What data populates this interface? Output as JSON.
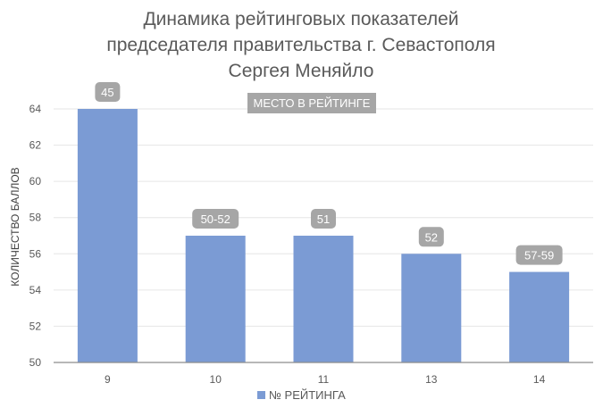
{
  "chart_data": {
    "type": "bar",
    "title_lines": [
      "Динамика рейтинговых показателей",
      "председателя правительства г. Севастополя",
      "Сергея Меняйло"
    ],
    "ylabel": "КОЛИЧЕСТВО БАЛЛОВ",
    "xlabel": "",
    "categories": [
      "9",
      "10",
      "11",
      "13",
      "14"
    ],
    "series": [
      {
        "name": "№ РЕЙТИНГА",
        "values": [
          64,
          57,
          57,
          56,
          55
        ]
      }
    ],
    "data_labels": [
      "45",
      "50-52",
      "51",
      "52",
      "57-59"
    ],
    "annotation": "МЕСТО В РЕЙТИНГЕ",
    "ylim": [
      50,
      64
    ],
    "yticks": [
      50,
      52,
      54,
      56,
      58,
      60,
      62,
      64
    ],
    "grid": true,
    "legend_position": "bottom",
    "colors": {
      "bar": "#7b9bd4",
      "badge": "#a6a6a6",
      "grid": "#e6e6e6",
      "axis": "#8c8c8c"
    }
  }
}
